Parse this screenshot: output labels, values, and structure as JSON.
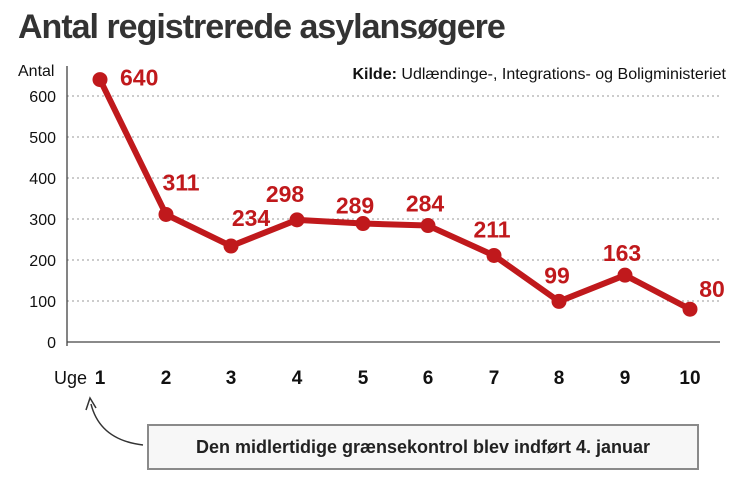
{
  "chart_data": {
    "type": "line",
    "title": "Antal registrerede asylansøgere",
    "ylabel": "Antal",
    "xlabel": "Uge",
    "source_label": "Kilde:",
    "source_text": "Udlændinge-, Integrations- og Boligministeriet",
    "categories": [
      "1",
      "2",
      "3",
      "4",
      "5",
      "6",
      "7",
      "8",
      "9",
      "10"
    ],
    "values": [
      640,
      311,
      234,
      298,
      289,
      284,
      211,
      99,
      163,
      80
    ],
    "yticks": [
      "0",
      "100",
      "200",
      "300",
      "400",
      "500",
      "600"
    ],
    "ylim": [
      0,
      650
    ],
    "grid": true,
    "color": "#c0191c",
    "annotation": "Den midlertidige grænsekontrol blev indført 4. januar"
  }
}
